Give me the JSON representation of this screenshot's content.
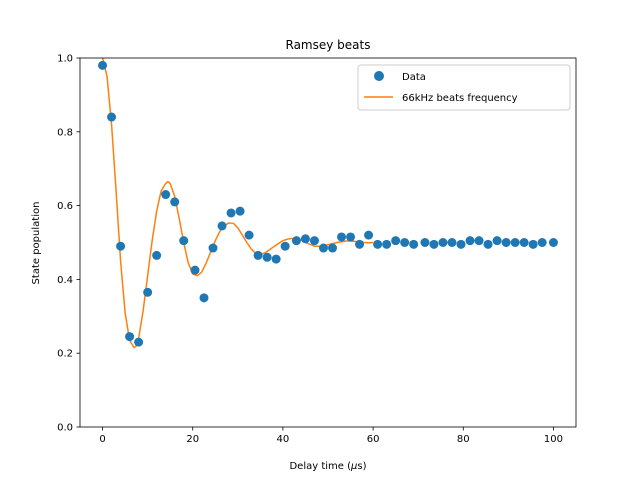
{
  "chart_data": {
    "type": "scatter",
    "title": "Ramsey beats",
    "xlabel": "Delay time (μs)",
    "xlabel_parts": {
      "main": "Delay time (",
      "mu": "μ",
      "unit": "s)"
    },
    "ylabel": "State population",
    "xlim": [
      -5,
      105
    ],
    "ylim": [
      0.0,
      1.0
    ],
    "xticks": [
      0,
      20,
      40,
      60,
      80,
      100
    ],
    "xtick_labels": [
      "0",
      "20",
      "40",
      "60",
      "80",
      "100"
    ],
    "yticks": [
      0.0,
      0.2,
      0.4,
      0.6,
      0.8,
      1.0
    ],
    "ytick_labels": [
      "0.0",
      "0.2",
      "0.4",
      "0.6",
      "0.8",
      "1.0"
    ],
    "grid": false,
    "legend_position": "top-right",
    "series": [
      {
        "name": "Data",
        "type": "scatter",
        "color": "#1f77b4",
        "x": [
          0,
          2,
          4,
          6,
          8,
          10,
          12,
          14,
          16,
          18,
          20.5,
          22.5,
          24.5,
          26.5,
          28.5,
          30.5,
          32.5,
          34.5,
          36.5,
          38.5,
          40.5,
          43,
          45,
          47,
          49,
          51,
          53,
          55,
          57,
          59,
          61,
          63,
          65,
          67,
          69,
          71.5,
          73.5,
          75.5,
          77.5,
          79.5,
          81.5,
          83.5,
          85.5,
          87.5,
          89.5,
          91.5,
          93.5,
          95.5,
          97.5,
          100
        ],
        "y": [
          0.98,
          0.84,
          0.49,
          0.245,
          0.23,
          0.365,
          0.465,
          0.63,
          0.61,
          0.505,
          0.425,
          0.35,
          0.485,
          0.545,
          0.58,
          0.585,
          0.52,
          0.465,
          0.46,
          0.455,
          0.49,
          0.505,
          0.51,
          0.505,
          0.485,
          0.485,
          0.515,
          0.515,
          0.495,
          0.52,
          0.495,
          0.495,
          0.505,
          0.5,
          0.495,
          0.5,
          0.495,
          0.5,
          0.5,
          0.495,
          0.505,
          0.505,
          0.495,
          0.505,
          0.5,
          0.5,
          0.5,
          0.495,
          0.5,
          0.5
        ]
      },
      {
        "name": "66kHz beats frequency",
        "type": "line",
        "color": "#ff7f0e",
        "x": [
          0,
          1,
          2,
          3,
          4,
          5,
          6,
          7,
          7.5,
          8,
          9,
          10,
          11,
          12,
          13,
          14,
          14.5,
          15,
          16,
          17,
          18,
          19,
          20,
          21,
          22,
          23,
          24,
          25,
          26,
          27,
          28,
          29,
          30,
          31,
          32,
          33,
          34,
          35,
          36,
          37,
          38,
          39,
          40,
          41,
          42,
          43,
          44,
          45,
          46,
          47,
          48,
          49,
          50,
          51,
          52,
          53,
          54,
          55,
          56,
          57,
          58,
          59,
          60
        ],
        "y": [
          1.0,
          0.95,
          0.82,
          0.64,
          0.45,
          0.31,
          0.235,
          0.215,
          0.22,
          0.24,
          0.315,
          0.41,
          0.505,
          0.585,
          0.64,
          0.66,
          0.665,
          0.66,
          0.625,
          0.565,
          0.5,
          0.445,
          0.415,
          0.41,
          0.42,
          0.445,
          0.475,
          0.505,
          0.53,
          0.545,
          0.553,
          0.552,
          0.54,
          0.52,
          0.5,
          0.482,
          0.47,
          0.468,
          0.472,
          0.48,
          0.489,
          0.497,
          0.505,
          0.509,
          0.511,
          0.51,
          0.507,
          0.5,
          0.495,
          0.49,
          0.49,
          0.491,
          0.494,
          0.497,
          0.5,
          0.502,
          0.504,
          0.504,
          0.503,
          0.501,
          0.5,
          0.499,
          0.5
        ]
      }
    ]
  }
}
